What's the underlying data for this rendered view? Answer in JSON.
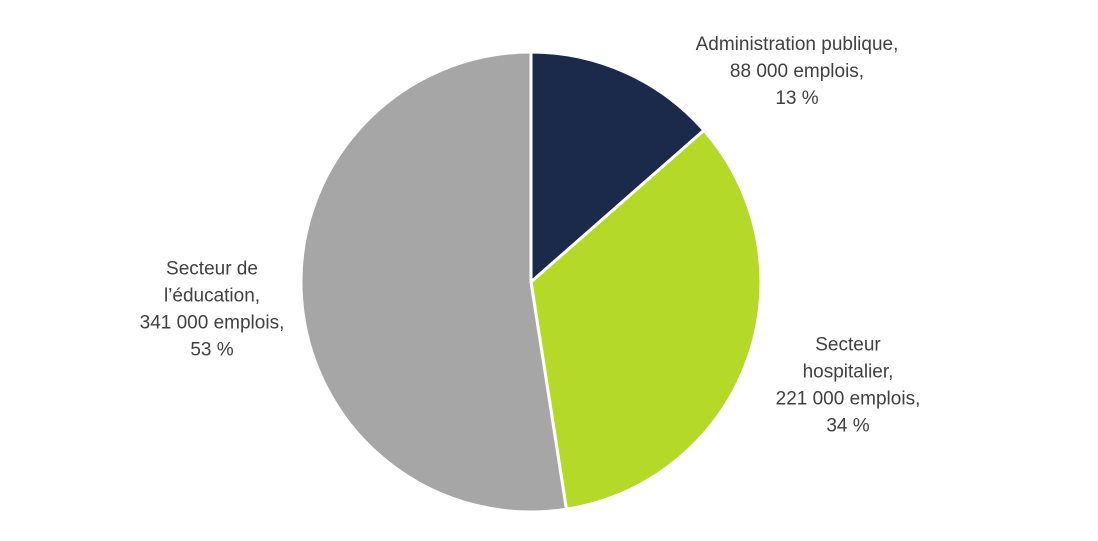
{
  "chart_data": {
    "type": "pie",
    "slices": [
      {
        "name": "Administration publique",
        "value": 88000,
        "percent": 13,
        "color": "#1b2a4a",
        "label_lines": [
          "Administration publique,",
          "88 000 emplois,",
          "13 %"
        ]
      },
      {
        "name": "Secteur hospitalier",
        "value": 221000,
        "percent": 34,
        "color": "#b5d929",
        "label_lines": [
          "Secteur",
          "hospitalier,",
          "221 000 emplois,",
          "34 %"
        ]
      },
      {
        "name": "Secteur de l’éducation",
        "value": 341000,
        "percent": 53,
        "color": "#a6a6a6",
        "label_lines": [
          "Secteur de",
          "l’éducation,",
          "341 000 emplois,",
          "53 %"
        ]
      }
    ],
    "start_angle": "12 o'clock",
    "direction": "clockwise",
    "legend": "none"
  }
}
